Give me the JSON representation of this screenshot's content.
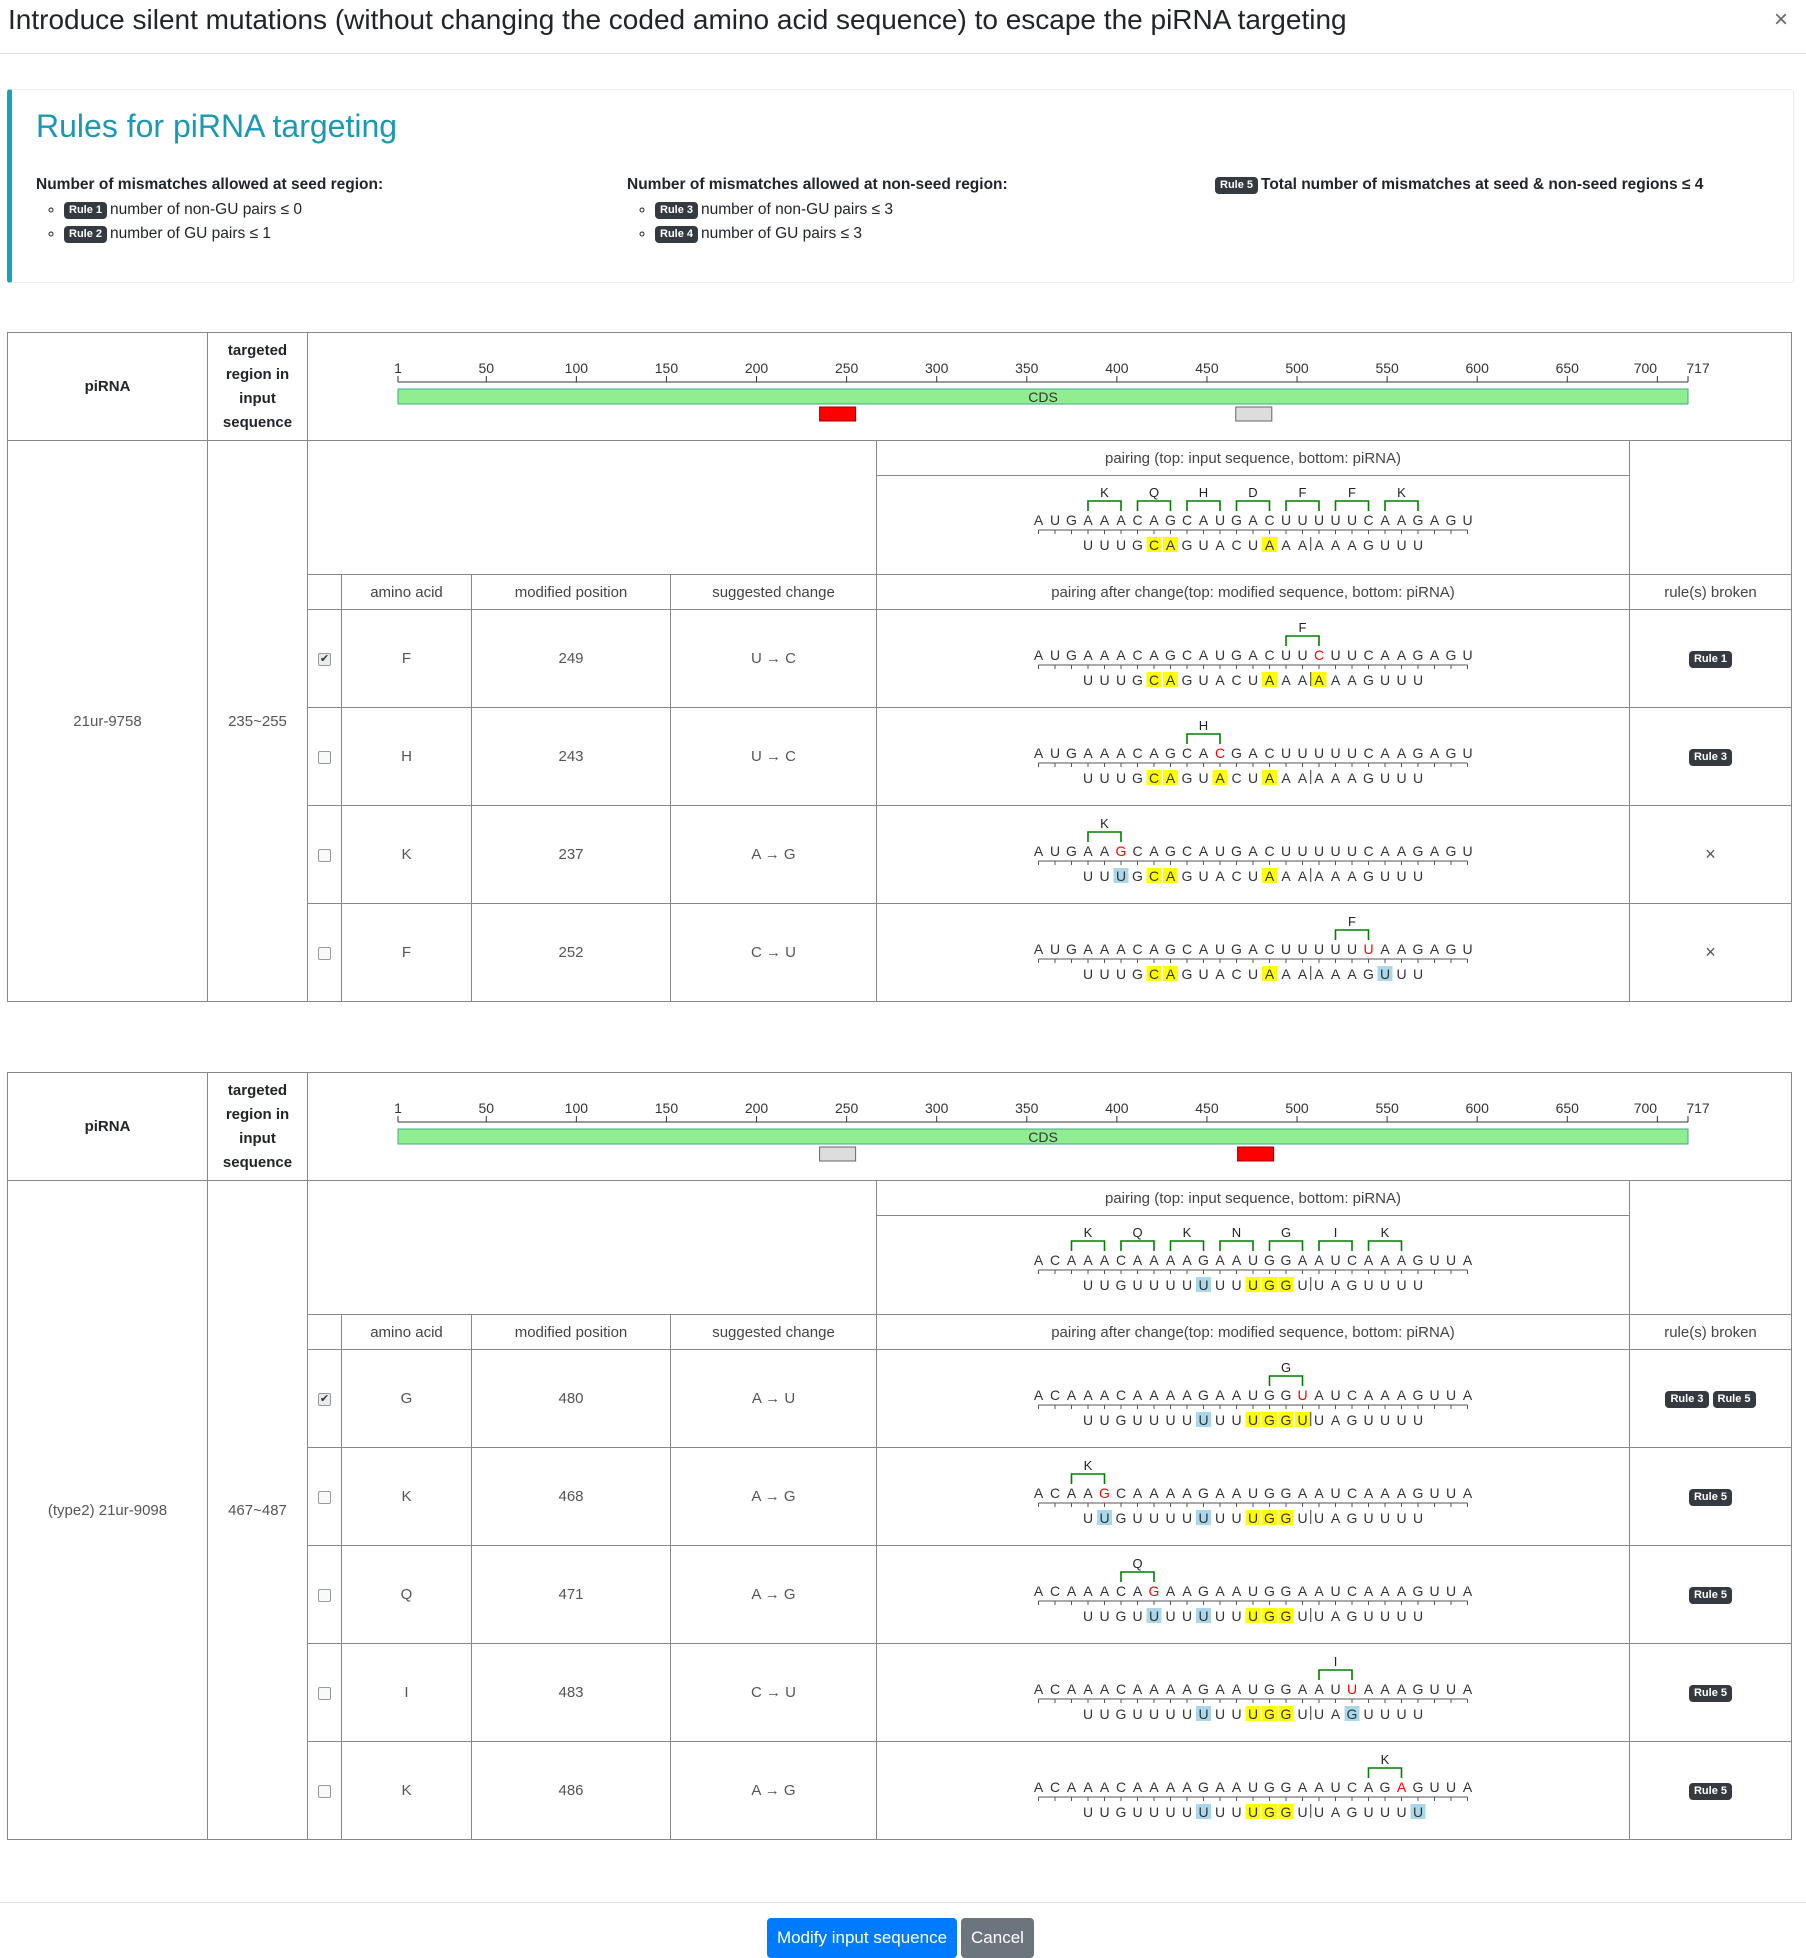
{
  "modal": {
    "title": "Introduce silent mutations (without changing the coded amino acid sequence) to escape the piRNA targeting",
    "close_label": "×"
  },
  "rules": {
    "heading": "Rules for piRNA targeting",
    "seed_title": "Number of mismatches allowed at seed region:",
    "nonseed_title": "Number of mismatches allowed at non-seed region:",
    "items": [
      {
        "badge": "Rule 1",
        "text": "number of non-GU pairs  ≤ 0"
      },
      {
        "badge": "Rule 2",
        "text": "number of GU pairs  ≤ 1"
      },
      {
        "badge": "Rule 3",
        "text": "number of non-GU pairs  ≤ 3"
      },
      {
        "badge": "Rule 4",
        "text": "number of GU pairs  ≤ 3"
      },
      {
        "badge": "Rule 5",
        "text": "Total number of mismatches at seed & non-seed regions ≤ 4"
      }
    ]
  },
  "headers": {
    "pirna": "piRNA",
    "targeted": "targeted region in input sequence",
    "pairing": "pairing (top: input sequence, bottom: piRNA)",
    "amino_acid": "amino acid",
    "modified_position": "modified position",
    "suggested_change": "suggested change",
    "pairing_after": "pairing after change(top: modified sequence, bottom: piRNA)",
    "rules_broken": "rule(s) broken"
  },
  "ruler": {
    "ticks": [
      1,
      50,
      100,
      150,
      200,
      250,
      300,
      350,
      400,
      450,
      500,
      550,
      600,
      650,
      700,
      717
    ],
    "length": 717,
    "cds_label": "CDS",
    "cds_color": "#90ee90"
  },
  "colors": {
    "seed": "#ffff00",
    "gu": "#a8d8ea",
    "end": "#8fd98f",
    "mut": "#ff0000",
    "active": "#ff0000",
    "inactive": "#dddddd",
    "bracket": "#008000"
  },
  "targets": [
    {
      "pirna": "21ur-9758",
      "region": "235~255",
      "region_range": [
        235,
        255
      ],
      "other_range": [
        466,
        486
      ],
      "top": "AUGAAACAGCAUGACUUUUUCAAGAGU",
      "bottom": "UUUGCAGUACUAAA|AAAGUUU",
      "bottom_offset": 3,
      "codons": [
        {
          "aa": "K",
          "start": 3
        },
        {
          "aa": "Q",
          "start": 6
        },
        {
          "aa": "H",
          "start": 9
        },
        {
          "aa": "D",
          "start": 12
        },
        {
          "aa": "F",
          "start": 15
        },
        {
          "aa": "F",
          "start": 18
        },
        {
          "aa": "K",
          "start": 21
        }
      ],
      "bottom_marks": [
        {
          "i": 4,
          "t": "seed"
        },
        {
          "i": 5,
          "t": "seed"
        },
        {
          "i": 11,
          "t": "seed"
        },
        {
          "i": 21,
          "t": "end"
        }
      ],
      "rows": [
        {
          "checked": true,
          "aa": "F",
          "pos": "249",
          "change": "U → C",
          "top": "AUGAAACAGCAUGACUUCUUCAAGAGU",
          "mut_idx": 17,
          "codon": {
            "aa": "F",
            "start": 15
          },
          "bottom_marks": [
            {
              "i": 4,
              "t": "seed"
            },
            {
              "i": 5,
              "t": "seed"
            },
            {
              "i": 11,
              "t": "seed"
            },
            {
              "i": 14,
              "t": "seed"
            },
            {
              "i": 21,
              "t": "end"
            }
          ],
          "rules": [
            "Rule 1"
          ]
        },
        {
          "checked": false,
          "aa": "H",
          "pos": "243",
          "change": "U → C",
          "top": "AUGAAACAGCACGACUUUUUCAAGAGU",
          "mut_idx": 11,
          "codon": {
            "aa": "H",
            "start": 9
          },
          "bottom_marks": [
            {
              "i": 4,
              "t": "seed"
            },
            {
              "i": 5,
              "t": "seed"
            },
            {
              "i": 8,
              "t": "seed"
            },
            {
              "i": 11,
              "t": "seed"
            },
            {
              "i": 21,
              "t": "end"
            }
          ],
          "rules": [
            "Rule 3"
          ]
        },
        {
          "checked": false,
          "aa": "K",
          "pos": "237",
          "change": "A → G",
          "top": "AUGAAGCAGCAUGACUUUUUCAAGAGU",
          "mut_idx": 5,
          "codon": {
            "aa": "K",
            "start": 3
          },
          "bottom_marks": [
            {
              "i": 2,
              "t": "gu"
            },
            {
              "i": 4,
              "t": "seed"
            },
            {
              "i": 5,
              "t": "seed"
            },
            {
              "i": 11,
              "t": "seed"
            },
            {
              "i": 21,
              "t": "end"
            }
          ],
          "rules": []
        },
        {
          "checked": false,
          "aa": "F",
          "pos": "252",
          "change": "C → U",
          "top": "AUGAAACAGCAUGACUUUUUUAAGAGU",
          "mut_idx": 20,
          "codon": {
            "aa": "F",
            "start": 18
          },
          "bottom_marks": [
            {
              "i": 4,
              "t": "seed"
            },
            {
              "i": 5,
              "t": "seed"
            },
            {
              "i": 11,
              "t": "seed"
            },
            {
              "i": 18,
              "t": "gu"
            },
            {
              "i": 21,
              "t": "end"
            }
          ],
          "rules": []
        }
      ]
    },
    {
      "pirna": "(type2) 21ur-9098",
      "region": "467~487",
      "region_range": [
        467,
        487
      ],
      "other_range": [
        235,
        255
      ],
      "top": "ACAAACAAAAGAAUGGAAUCAAAGUUA",
      "bottom": "UUGUUUUUUUUGGU|UAGUUUU",
      "bottom_offset": 3,
      "codons": [
        {
          "aa": "K",
          "start": 2
        },
        {
          "aa": "Q",
          "start": 5
        },
        {
          "aa": "K",
          "start": 8
        },
        {
          "aa": "N",
          "start": 11
        },
        {
          "aa": "G",
          "start": 14
        },
        {
          "aa": "I",
          "start": 17
        },
        {
          "aa": "K",
          "start": 20
        }
      ],
      "bottom_marks": [
        {
          "i": 7,
          "t": "gu"
        },
        {
          "i": 10,
          "t": "seed"
        },
        {
          "i": 11,
          "t": "seed"
        },
        {
          "i": 12,
          "t": "seed"
        },
        {
          "i": 21,
          "t": "end"
        }
      ],
      "rows": [
        {
          "checked": true,
          "aa": "G",
          "pos": "480",
          "change": "A → U",
          "top": "ACAAACAAAAGAAUGGUAUCAAAGUUA",
          "mut_idx": 16,
          "codon": {
            "aa": "G",
            "start": 14
          },
          "bottom_marks": [
            {
              "i": 7,
              "t": "gu"
            },
            {
              "i": 10,
              "t": "seed"
            },
            {
              "i": 11,
              "t": "seed"
            },
            {
              "i": 12,
              "t": "seed"
            },
            {
              "i": 13,
              "t": "seed"
            },
            {
              "i": 21,
              "t": "end"
            }
          ],
          "rules": [
            "Rule 3",
            "Rule 5"
          ]
        },
        {
          "checked": false,
          "aa": "K",
          "pos": "468",
          "change": "A → G",
          "top": "ACAAGCAAAAGAAUGGAAUCAAAGUUA",
          "mut_idx": 4,
          "codon": {
            "aa": "K",
            "start": 2
          },
          "bottom_marks": [
            {
              "i": 1,
              "t": "gu"
            },
            {
              "i": 7,
              "t": "gu"
            },
            {
              "i": 10,
              "t": "seed"
            },
            {
              "i": 11,
              "t": "seed"
            },
            {
              "i": 12,
              "t": "seed"
            },
            {
              "i": 21,
              "t": "end"
            }
          ],
          "rules": [
            "Rule 5"
          ]
        },
        {
          "checked": false,
          "aa": "Q",
          "pos": "471",
          "change": "A → G",
          "top": "ACAAACAGAAGAAUGGAAUCAAAGUUA",
          "mut_idx": 7,
          "codon": {
            "aa": "Q",
            "start": 5
          },
          "bottom_marks": [
            {
              "i": 4,
              "t": "gu"
            },
            {
              "i": 7,
              "t": "gu"
            },
            {
              "i": 10,
              "t": "seed"
            },
            {
              "i": 11,
              "t": "seed"
            },
            {
              "i": 12,
              "t": "seed"
            },
            {
              "i": 21,
              "t": "end"
            }
          ],
          "rules": [
            "Rule 5"
          ]
        },
        {
          "checked": false,
          "aa": "I",
          "pos": "483",
          "change": "C → U",
          "top": "ACAAACAAAAGAAUGGAAUUAAAGUUA",
          "mut_idx": 19,
          "codon": {
            "aa": "I",
            "start": 17
          },
          "bottom_marks": [
            {
              "i": 7,
              "t": "gu"
            },
            {
              "i": 10,
              "t": "seed"
            },
            {
              "i": 11,
              "t": "seed"
            },
            {
              "i": 12,
              "t": "seed"
            },
            {
              "i": 16,
              "t": "gu"
            },
            {
              "i": 21,
              "t": "end"
            }
          ],
          "rules": [
            "Rule 5"
          ]
        },
        {
          "checked": false,
          "aa": "K",
          "pos": "486",
          "change": "A → G",
          "top": "ACAAACAAAAGAAUGGAAUCAGAGUUA",
          "mut_idx": 22,
          "codon": {
            "aa": "K",
            "start": 20
          },
          "bottom_marks": [
            {
              "i": 7,
              "t": "gu"
            },
            {
              "i": 10,
              "t": "seed"
            },
            {
              "i": 11,
              "t": "seed"
            },
            {
              "i": 12,
              "t": "seed"
            },
            {
              "i": 20,
              "t": "gu"
            },
            {
              "i": 21,
              "t": "end"
            }
          ],
          "rules": [
            "Rule 5"
          ]
        }
      ]
    }
  ],
  "footer": {
    "modify_label": "Modify input sequence",
    "cancel_label": "Cancel"
  }
}
